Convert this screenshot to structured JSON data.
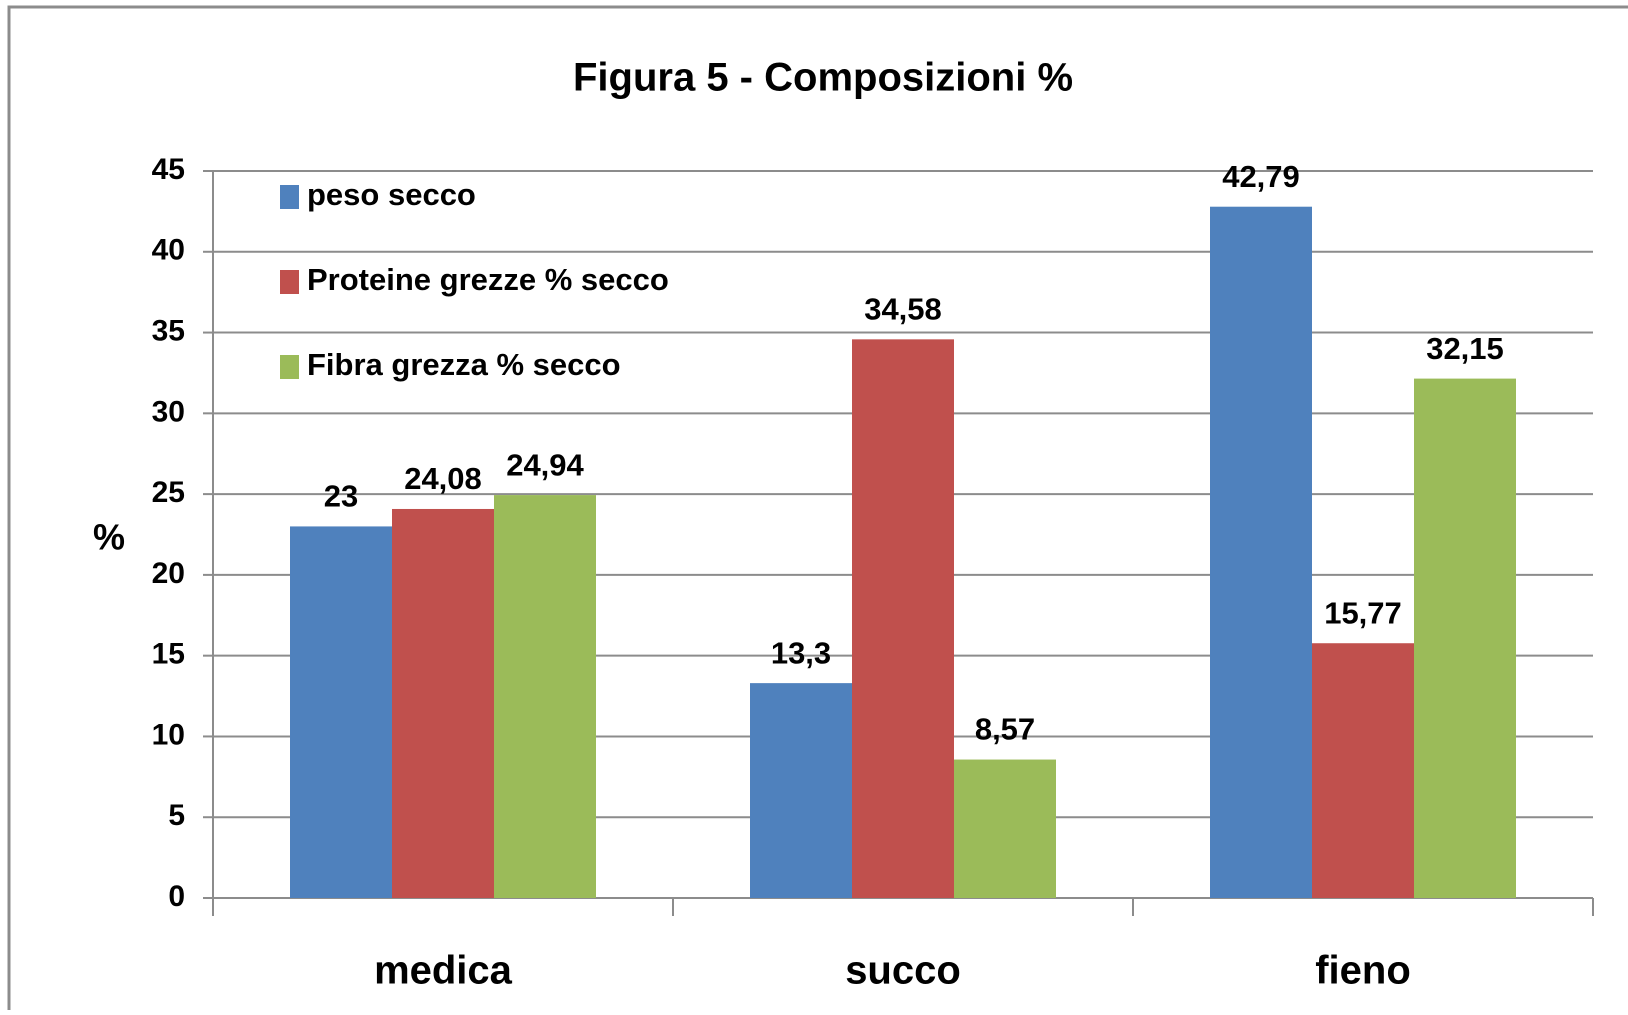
{
  "chart_data": {
    "type": "bar",
    "title": "Figura 5 - Composizioni  %",
    "y_label": "%",
    "categories": [
      "medica",
      "succo",
      "fieno"
    ],
    "series": [
      {
        "name": "peso secco",
        "color": "#4f81bd",
        "values": [
          23,
          13.3,
          42.79
        ],
        "value_labels": [
          "23",
          "13,3",
          "42,79"
        ]
      },
      {
        "name": "Proteine grezze % secco",
        "color": "#c0504d",
        "values": [
          24.08,
          34.58,
          15.77
        ],
        "value_labels": [
          "24,08",
          "34,58",
          "15,77"
        ]
      },
      {
        "name": "Fibra grezza % secco",
        "color": "#9bbb59",
        "values": [
          24.94,
          8.57,
          32.15
        ],
        "value_labels": [
          "24,94",
          "8,57",
          "32,15"
        ]
      }
    ],
    "ylim": [
      0,
      45
    ],
    "yticks": [
      0,
      5,
      10,
      15,
      20,
      25,
      30,
      35,
      40,
      45
    ],
    "grid": true,
    "legend": "top-left"
  }
}
